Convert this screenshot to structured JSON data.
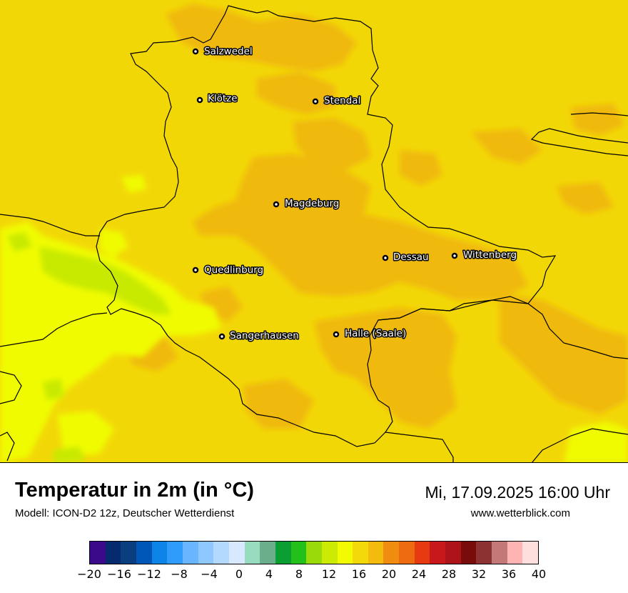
{
  "title": "Temperatur in 2m (in °C)",
  "model": "Modell: ICON-D2 12z, Deutscher Wetterdienst",
  "datetime": "Mi, 17.09.2025 16:00 Uhr",
  "website": "www.wetterblick.com",
  "cities": [
    {
      "name": "Salzwedel"
    },
    {
      "name": "Klötze"
    },
    {
      "name": "Stendal"
    },
    {
      "name": "Magdeburg"
    },
    {
      "name": "Dessau"
    },
    {
      "name": "Wittenberg"
    },
    {
      "name": "Quedlinburg"
    },
    {
      "name": "Sangerhausen"
    },
    {
      "name": "Halle (Saale)"
    }
  ],
  "colorbar": {
    "min": -20,
    "max": 40,
    "tick_labels": [
      "−20",
      "−16",
      "−12",
      "−8",
      "−4",
      "0",
      "4",
      "8",
      "12",
      "16",
      "20",
      "24",
      "28",
      "32",
      "36",
      "40"
    ],
    "colors": [
      "#3a0a8a",
      "#062a6e",
      "#0a3f7f",
      "#0057b7",
      "#0d85e8",
      "#2f9bfb",
      "#69b6ff",
      "#8ec8ff",
      "#b3dafe",
      "#d7e8ff",
      "#98dcc0",
      "#6aae8c",
      "#0b9e32",
      "#22c01a",
      "#9ad90a",
      "#ccea04",
      "#f2fb00",
      "#f3d80a",
      "#f4bb0f",
      "#f08d10",
      "#ee6b10",
      "#e83a10",
      "#c8181c",
      "#ac1419",
      "#7a0b0b",
      "#8d3232",
      "#c57878",
      "#ffb4b4",
      "#ffdede"
    ],
    "shown_range_colors": {
      "dominant": "#f2d707",
      "warmer": "#f0b90e",
      "cooler": "#f0fb00",
      "coolest": "#c8ea03"
    }
  }
}
